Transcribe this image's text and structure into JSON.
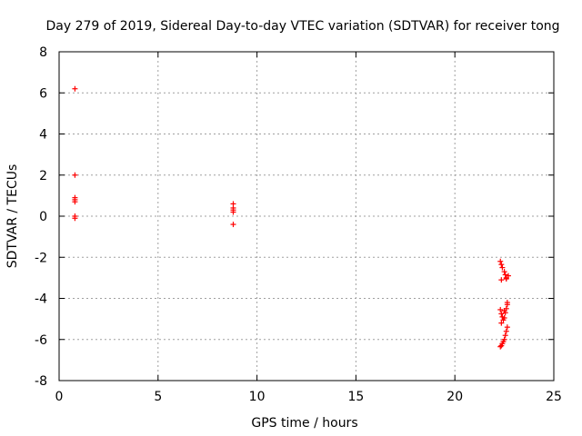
{
  "chart_data": {
    "type": "scatter",
    "title": "Day 279 of 2019, Sidereal Day-to-day VTEC variation (SDTVAR) for receiver tong",
    "xlabel": "GPS time / hours",
    "ylabel": "SDTVAR / TECUs",
    "xlim": [
      0,
      25
    ],
    "ylim": [
      -8,
      8
    ],
    "x_ticks": [
      0,
      5,
      10,
      15,
      20,
      25
    ],
    "y_ticks": [
      -8,
      -6,
      -4,
      -2,
      0,
      2,
      4,
      6,
      8
    ],
    "grid": true,
    "marker": "+",
    "colors": {
      "points": "#ff0000",
      "grid": "#a0a0a0",
      "axes": "#000000"
    },
    "series": [
      {
        "points": [
          [
            0.8,
            6.2
          ],
          [
            0.8,
            2.0
          ],
          [
            0.8,
            0.9
          ],
          [
            0.8,
            0.8
          ],
          [
            0.8,
            0.7
          ],
          [
            0.8,
            0.0
          ],
          [
            0.8,
            -0.1
          ],
          [
            8.8,
            0.6
          ],
          [
            8.8,
            0.4
          ],
          [
            8.8,
            0.3
          ],
          [
            8.8,
            0.2
          ],
          [
            8.8,
            -0.4
          ],
          [
            22.3,
            -2.2
          ],
          [
            22.35,
            -2.35
          ],
          [
            22.4,
            -2.5
          ],
          [
            22.5,
            -2.7
          ],
          [
            22.55,
            -2.85
          ],
          [
            22.6,
            -3.0
          ],
          [
            22.6,
            -3.05
          ],
          [
            22.7,
            -2.9
          ],
          [
            22.35,
            -3.1
          ],
          [
            22.3,
            -4.55
          ],
          [
            22.35,
            -4.75
          ],
          [
            22.4,
            -4.9
          ],
          [
            22.45,
            -5.05
          ],
          [
            22.35,
            -5.2
          ],
          [
            22.5,
            -4.6
          ],
          [
            22.55,
            -4.7
          ],
          [
            22.6,
            -4.5
          ],
          [
            22.65,
            -4.3
          ],
          [
            22.65,
            -4.2
          ],
          [
            22.5,
            -4.95
          ],
          [
            22.65,
            -5.4
          ],
          [
            22.6,
            -5.6
          ],
          [
            22.55,
            -5.8
          ],
          [
            22.5,
            -6.0
          ],
          [
            22.45,
            -6.1
          ],
          [
            22.4,
            -6.2
          ],
          [
            22.35,
            -6.3
          ],
          [
            22.3,
            -6.35
          ]
        ]
      }
    ]
  }
}
